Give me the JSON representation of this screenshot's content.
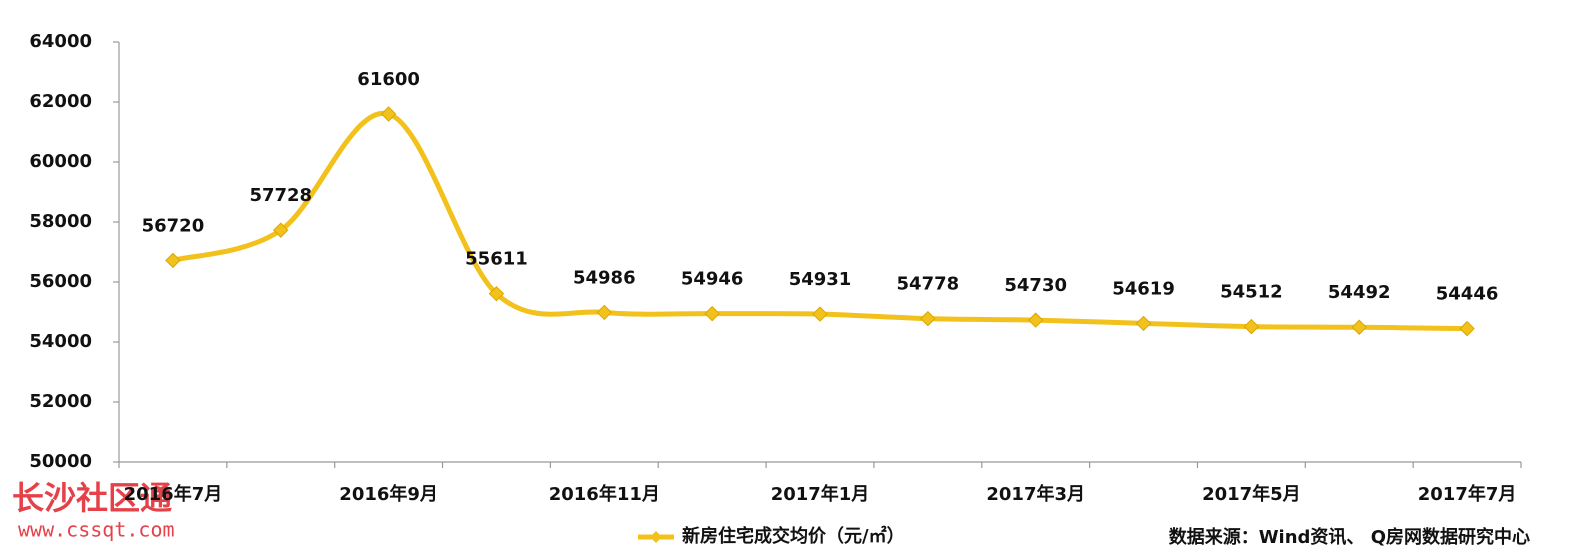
{
  "chart_data": {
    "type": "line",
    "categories": [
      "2016年7月",
      null,
      "2016年9月",
      null,
      "2016年11月",
      null,
      "2017年1月",
      null,
      "2017年3月",
      null,
      "2017年5月",
      null,
      "2017年7月"
    ],
    "series": [
      {
        "name": "新房住宅成交均价（元/㎡）",
        "color": "#f2c11c",
        "values": [
          56720,
          57728,
          61600,
          55611,
          54986,
          54946,
          54931,
          54778,
          54730,
          54619,
          54512,
          54492,
          54446
        ]
      }
    ],
    "ylim": [
      50000,
      64000
    ],
    "yticks": [
      50000,
      52000,
      54000,
      56000,
      58000,
      60000,
      62000,
      64000
    ],
    "grid": false,
    "legend": "bottom",
    "source": "数据来源：Wind资讯、 Q房网数据研究中心",
    "watermark": [
      "长沙社区通",
      "www.cssqt.com"
    ]
  }
}
